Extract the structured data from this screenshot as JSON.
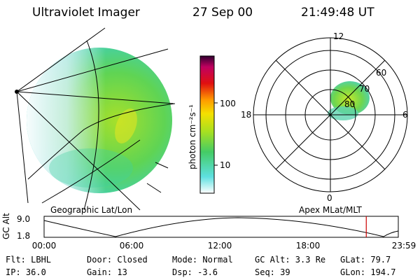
{
  "header": {
    "instrument": "Ultraviolet Imager",
    "date": "27 Sep 00",
    "time": "21:49:48 UT"
  },
  "colorbar": {
    "unit": "photon cm⁻²s⁻¹",
    "ticks": [
      "100",
      "10"
    ]
  },
  "polar": {
    "mlt_labels": {
      "top": "12",
      "left": "18",
      "right": "6",
      "bottom": "0"
    },
    "lat_labels": [
      "60",
      "70",
      "80"
    ],
    "caption": "Apex MLat/MLT"
  },
  "geo": {
    "caption": "Geographic Lat/Lon"
  },
  "timeline": {
    "ylabel": "GC Alt",
    "yticks": [
      "9.0",
      "1.8"
    ],
    "xticks": [
      "00:00",
      "06:00",
      "12:00",
      "18:00",
      "23:59"
    ],
    "marker_hour": 21.83
  },
  "info": {
    "flt": "Flt: LBHL",
    "ip": "IP: 36.0",
    "door": "Door: Closed",
    "gain": "Gain: 13",
    "mode": "Mode: Normal",
    "dsp": "Dsp:    -3.6",
    "gcalt": "GC Alt: 3.3 Re",
    "seq": "Seq: 39",
    "glat": "GLat:  79.7",
    "glon": "GLon: 194.7"
  }
}
